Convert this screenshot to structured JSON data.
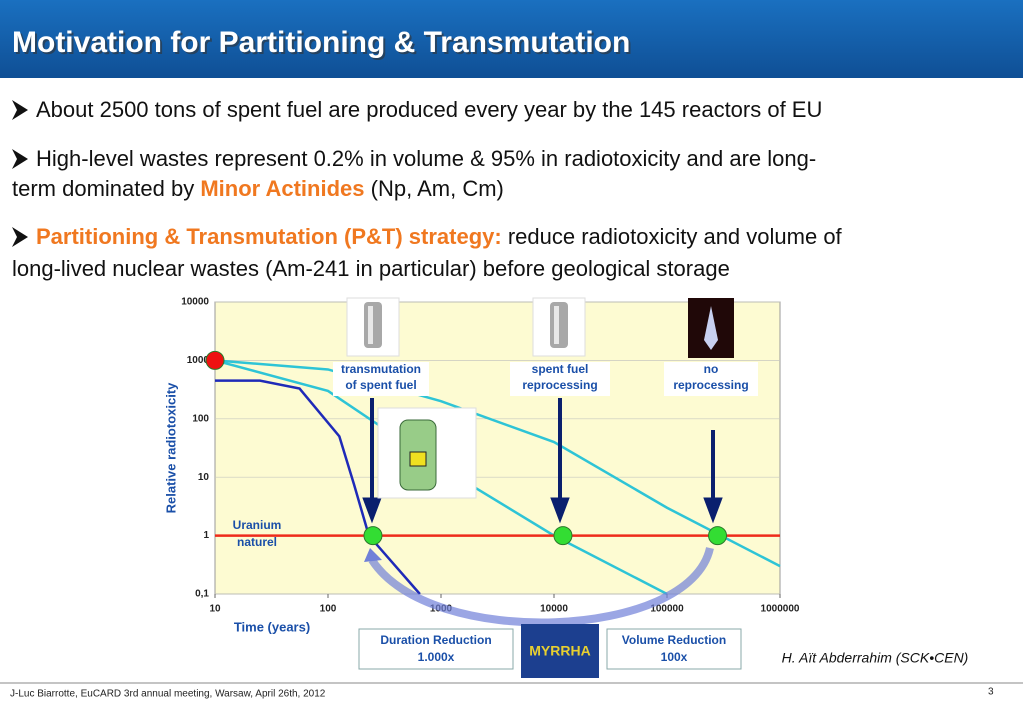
{
  "header": {
    "title": "Motivation for Partitioning & Transmutation"
  },
  "bullets": [
    [
      "About 2500 tons of spent fuel are produced every year by the 145 reactors of EU"
    ],
    [
      "High-level wastes represent 0.2% in volume & 95% in radiotoxicity and are long-",
      "term dominated by ",
      "Minor Actinides",
      " (Np, Am, Cm)"
    ],
    [
      "Partitioning & Transmutation (P&T) strategy:",
      " reduce radiotoxicity and volume of",
      "long-lived nuclear wastes (Am-241 in particular) before geological storage"
    ]
  ],
  "chart": {
    "type": "line",
    "ylabel": "Relative radiotoxicity",
    "xlabel": "Time (years)",
    "xlog": true,
    "ylog": true,
    "xlim": [
      10,
      1000000
    ],
    "ylim": [
      0.1,
      10000
    ],
    "xticks": [
      10,
      100,
      1000,
      10000,
      100000,
      1000000
    ],
    "yticks": [
      10000,
      1000,
      100,
      10,
      1,
      {
        "value": 0.1,
        "label": "0,1"
      }
    ],
    "grid": true,
    "series": [
      {
        "color": "#2ec4d6",
        "x": [
          10,
          100,
          1000,
          10000,
          100000,
          1000000
        ],
        "values": [
          1000,
          700,
          200,
          40,
          3,
          0.3
        ]
      },
      {
        "color": "#2ec4d6",
        "x": [
          10,
          100,
          1000,
          10000,
          100000
        ],
        "values": [
          1000,
          300,
          15,
          1,
          0.1
        ]
      },
      {
        "color": "#1f2ab8",
        "x": [
          10,
          25,
          56,
          126,
          170,
          230,
          650
        ],
        "values": [
          450,
          450,
          330,
          50,
          7.5,
          1,
          0.1
        ]
      },
      {
        "color": "#ee2b1b",
        "x": [
          10,
          1000000
        ],
        "values": [
          1,
          1
        ]
      }
    ],
    "markers": [
      {
        "x": 10,
        "y": 1000,
        "color": "#ee1111"
      },
      {
        "x": 250,
        "y": 1,
        "color": "#33dd33"
      },
      {
        "x": 12000,
        "y": 1,
        "color": "#33dd33"
      },
      {
        "x": 280000,
        "y": 1,
        "color": "#33dd33"
      }
    ],
    "annotations": {
      "uranium": [
        "Uranium",
        "naturel"
      ],
      "transmutation": [
        "transmutation",
        "of spent fuel"
      ],
      "reprocessing": [
        "spent fuel",
        "reprocessing"
      ],
      "no_reprocessing": [
        "no",
        "reprocessing"
      ]
    }
  },
  "boxes": {
    "duration": [
      "Duration Reduction",
      "1.000x"
    ],
    "volume": [
      "Volume Reduction",
      "100x"
    ],
    "logo": "MYRRHA"
  },
  "credit": "H. Aït Abderrahim (SCK•CEN)",
  "footer": {
    "text": "J-Luc Biarrotte, EuCARD 3rd annual meeting, Warsaw, April 26th, 2012",
    "page": "3"
  }
}
